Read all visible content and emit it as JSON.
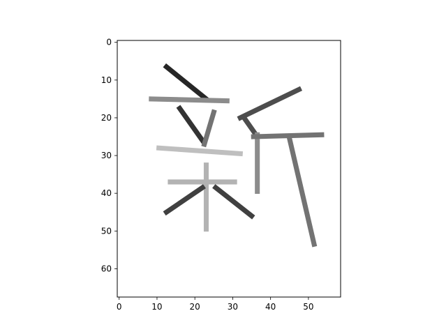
{
  "chart_data": {
    "type": "heatmap",
    "title": "",
    "xlabel": "",
    "ylabel": "",
    "colormap": "gray_r",
    "image_width": 59,
    "image_height": 68,
    "xlim": [
      -0.5,
      58.5
    ],
    "ylim": [
      67.5,
      -0.5
    ],
    "x_ticks": [
      0,
      10,
      20,
      30,
      40,
      50
    ],
    "y_ticks": [
      0,
      10,
      20,
      30,
      40,
      50,
      60
    ],
    "x_tick_labels": [
      "0",
      "10",
      "20",
      "30",
      "40",
      "50"
    ],
    "y_tick_labels": [
      "0",
      "10",
      "20",
      "30",
      "40",
      "50",
      "60"
    ],
    "strokes": [
      {
        "x1": 12.5,
        "y1": 6.5,
        "x2": 23,
        "y2": 15,
        "intensity": 0.85
      },
      {
        "x1": 8.5,
        "y1": 15,
        "x2": 28.5,
        "y2": 15.5,
        "intensity": 0.45
      },
      {
        "x1": 16,
        "y1": 17.5,
        "x2": 22,
        "y2": 26,
        "intensity": 0.8
      },
      {
        "x1": 25,
        "y1": 18.5,
        "x2": 22.5,
        "y2": 27,
        "intensity": 0.55
      },
      {
        "x1": 10.5,
        "y1": 28,
        "x2": 32,
        "y2": 29.5,
        "intensity": 0.25
      },
      {
        "x1": 23,
        "y1": 32.5,
        "x2": 23,
        "y2": 49.5,
        "intensity": 0.3
      },
      {
        "x1": 13.5,
        "y1": 37,
        "x2": 30.5,
        "y2": 37,
        "intensity": 0.3
      },
      {
        "x1": 22,
        "y1": 38.5,
        "x2": 12.5,
        "y2": 45,
        "intensity": 0.75
      },
      {
        "x1": 25.5,
        "y1": 38.5,
        "x2": 35,
        "y2": 46,
        "intensity": 0.75
      },
      {
        "x1": 47.5,
        "y1": 12.5,
        "x2": 32,
        "y2": 20,
        "intensity": 0.7
      },
      {
        "x1": 33,
        "y1": 20,
        "x2": 36.5,
        "y2": 25,
        "intensity": 0.7
      },
      {
        "x1": 36.5,
        "y1": 24.5,
        "x2": 36.5,
        "y2": 39.5,
        "intensity": 0.45
      },
      {
        "x1": 35.5,
        "y1": 25,
        "x2": 53.5,
        "y2": 24.5,
        "intensity": 0.55
      },
      {
        "x1": 45,
        "y1": 25.5,
        "x2": 51.5,
        "y2": 53.5,
        "intensity": 0.55
      }
    ]
  }
}
